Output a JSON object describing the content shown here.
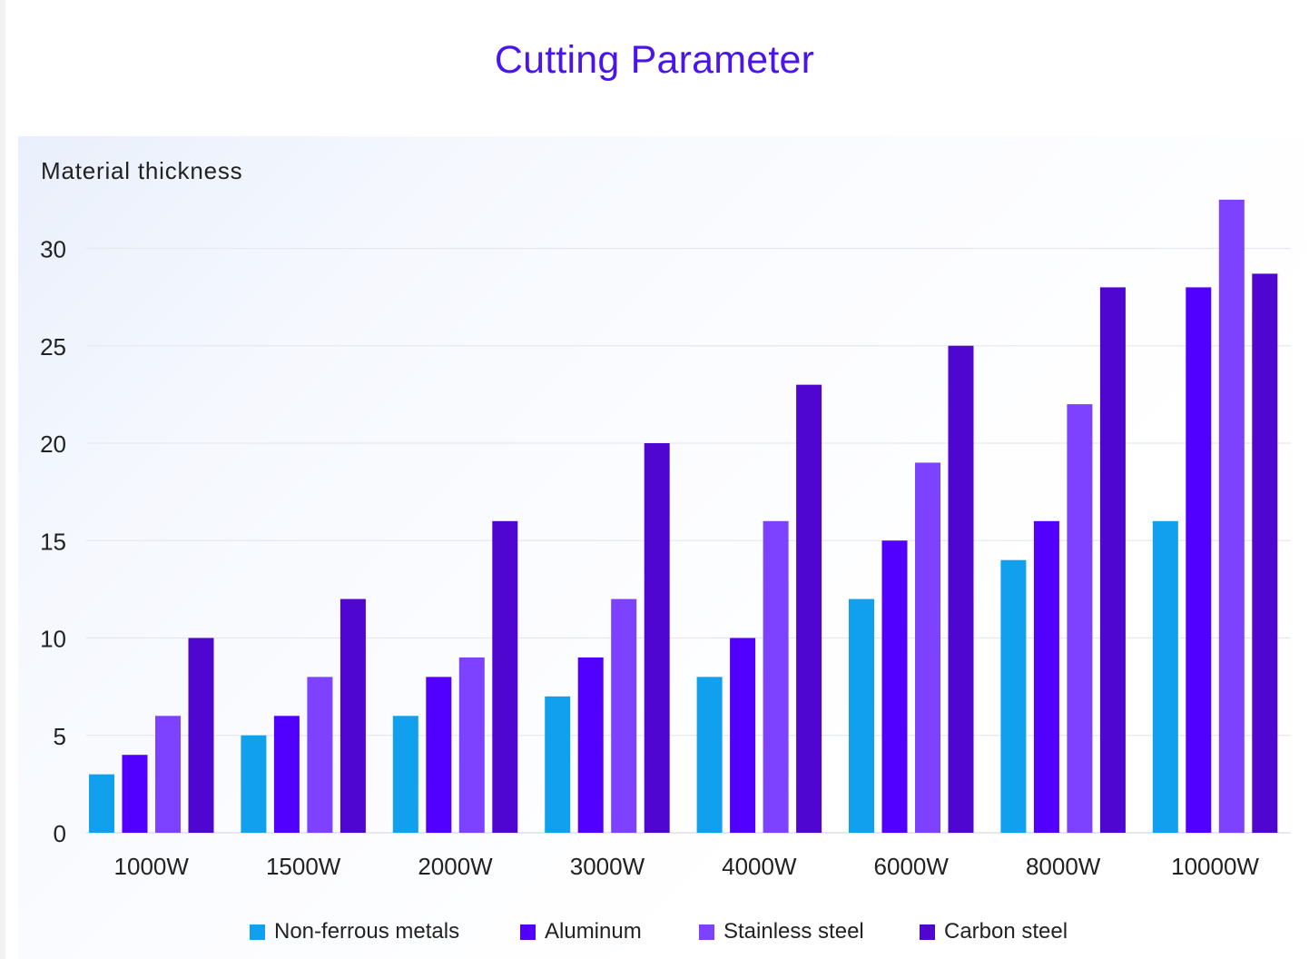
{
  "chart_data": {
    "type": "bar",
    "title": "Cutting Parameter",
    "ylabel": "Material thickness",
    "xlabel": "",
    "ylim": [
      0,
      32
    ],
    "yticks": [
      0,
      5,
      10,
      15,
      20,
      25,
      30
    ],
    "grid": true,
    "legend_position": "bottom",
    "categories": [
      "1000W",
      "1500W",
      "2000W",
      "3000W",
      "4000W",
      "6000W",
      "8000W",
      "10000W"
    ],
    "series": [
      {
        "name": "Non-ferrous metals",
        "color": "#10a0ee",
        "values": [
          3,
          5,
          6,
          7,
          8,
          12,
          14,
          16
        ]
      },
      {
        "name": "Aluminum",
        "color": "#5100ff",
        "values": [
          4,
          6,
          8,
          9,
          10,
          15,
          16,
          28
        ]
      },
      {
        "name": "Stainless steel",
        "color": "#7c42ff",
        "values": [
          6,
          8,
          9,
          12,
          16,
          19,
          22,
          32.5
        ]
      },
      {
        "name": "Carbon steel",
        "color": "#4f06d0",
        "values": [
          10,
          12,
          16,
          20,
          23,
          25,
          28,
          28.7
        ]
      }
    ]
  }
}
